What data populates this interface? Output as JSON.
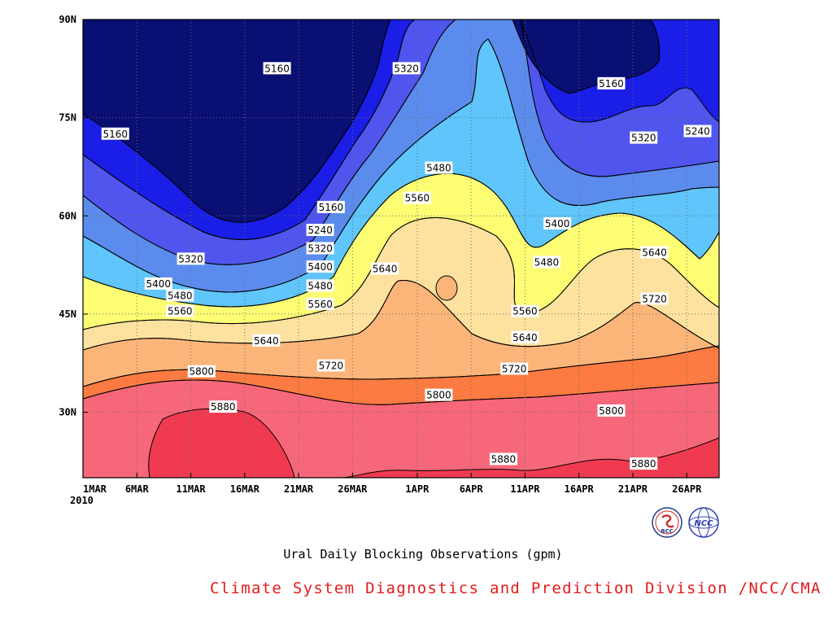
{
  "chart_data": {
    "type": "contour",
    "title": "Ural Daily Blocking Observations (gpm)",
    "credit": "Climate System Diagnostics and Prediction Division /NCC/CMA",
    "xlabel": "",
    "ylabel": "",
    "x_range": [
      "2010-03-01",
      "2010-04-29"
    ],
    "y_range": [
      20,
      90
    ],
    "x_ticks": [
      "1MAR",
      "6MAR",
      "11MAR",
      "16MAR",
      "21MAR",
      "26MAR",
      "1APR",
      "6APR",
      "11APR",
      "16APR",
      "21APR",
      "26APR"
    ],
    "x_tick_year": "2010",
    "y_ticks": [
      {
        "value": 30,
        "label": "30N"
      },
      {
        "value": 45,
        "label": "45N"
      },
      {
        "value": 60,
        "label": "60N"
      },
      {
        "value": 75,
        "label": "75N"
      },
      {
        "value": 90,
        "label": "90N"
      }
    ],
    "grid": true,
    "contour_levels": [
      5160,
      5240,
      5320,
      5400,
      5480,
      5560,
      5640,
      5720,
      5800,
      5880
    ],
    "level_colors": [
      "#0a0f74",
      "#1a1ee6",
      "#5055ee",
      "#5b8ced",
      "#5fc5fb",
      "#fdfd74",
      "#fde29f",
      "#fbb579",
      "#fb7b42",
      "#f7677a",
      "#f03a50"
    ],
    "contour_labels": [
      {
        "text": "5160",
        "date": "2010-03-19",
        "lat": 82.5
      },
      {
        "text": "5320",
        "date": "2010-03-31",
        "lat": 82.5
      },
      {
        "text": "5160",
        "date": "2010-03-04",
        "lat": 72.5
      },
      {
        "text": "5160",
        "date": "2010-04-19",
        "lat": 80.2
      },
      {
        "text": "5320",
        "date": "2010-04-22",
        "lat": 71.9
      },
      {
        "text": "5240",
        "date": "2010-04-27",
        "lat": 72.9
      },
      {
        "text": "5480",
        "date": "2010-04-03",
        "lat": 67.3
      },
      {
        "text": "5560",
        "date": "2010-04-01",
        "lat": 62.7
      },
      {
        "text": "5160",
        "date": "2010-03-24",
        "lat": 61.3
      },
      {
        "text": "5240",
        "date": "2010-03-23",
        "lat": 57.8
      },
      {
        "text": "5320",
        "date": "2010-03-23",
        "lat": 55.0
      },
      {
        "text": "5400",
        "date": "2010-03-23",
        "lat": 52.2
      },
      {
        "text": "5480",
        "date": "2010-03-23",
        "lat": 49.3
      },
      {
        "text": "5560",
        "date": "2010-03-23",
        "lat": 46.5
      },
      {
        "text": "5400",
        "date": "2010-04-14",
        "lat": 58.8
      },
      {
        "text": "5480",
        "date": "2010-04-13",
        "lat": 52.9
      },
      {
        "text": "5320",
        "date": "2010-03-11",
        "lat": 53.4
      },
      {
        "text": "5400",
        "date": "2010-03-08",
        "lat": 49.6
      },
      {
        "text": "5480",
        "date": "2010-03-10",
        "lat": 47.8
      },
      {
        "text": "5560",
        "date": "2010-03-10",
        "lat": 45.4
      },
      {
        "text": "5640",
        "date": "2010-03-29",
        "lat": 51.9
      },
      {
        "text": "5640",
        "date": "2010-04-23",
        "lat": 54.4
      },
      {
        "text": "5720",
        "date": "2010-04-23",
        "lat": 47.3
      },
      {
        "text": "5560",
        "date": "2010-04-11",
        "lat": 45.4
      },
      {
        "text": "5640",
        "date": "2010-04-11",
        "lat": 41.4
      },
      {
        "text": "5640",
        "date": "2010-03-18",
        "lat": 40.9
      },
      {
        "text": "5720",
        "date": "2010-03-24",
        "lat": 37.1
      },
      {
        "text": "5720",
        "date": "2010-04-10",
        "lat": 36.6
      },
      {
        "text": "5800",
        "date": "2010-03-12",
        "lat": 36.2
      },
      {
        "text": "5880",
        "date": "2010-03-14",
        "lat": 30.8
      },
      {
        "text": "5800",
        "date": "2010-04-03",
        "lat": 32.6
      },
      {
        "text": "5800",
        "date": "2010-04-19",
        "lat": 30.2
      },
      {
        "text": "5880",
        "date": "2010-04-09",
        "lat": 22.8
      },
      {
        "text": "5880",
        "date": "2010-04-22",
        "lat": 22.1
      }
    ]
  },
  "logos": {
    "bcc": {
      "text": "BCC",
      "icon": "bcc-logo"
    },
    "ncc": {
      "text": "NCC",
      "icon": "ncc-logo"
    }
  }
}
